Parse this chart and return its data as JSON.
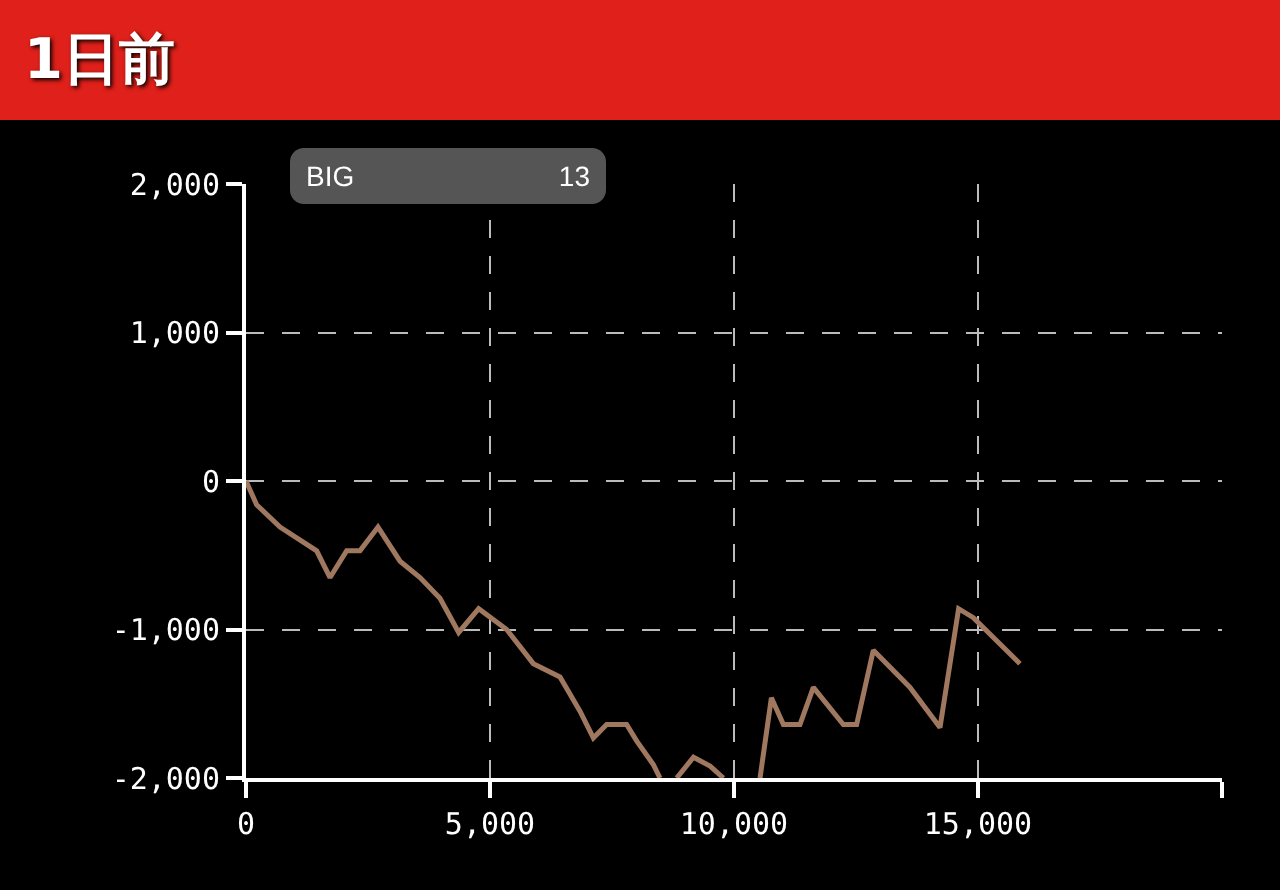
{
  "chart_data": {
    "type": "line",
    "title": "1日前",
    "annotations": [
      "BIG",
      "13"
    ],
    "x": [
      0,
      218,
      697,
      1448,
      1722,
      2063,
      2336,
      2705,
      3156,
      3566,
      3975,
      4358,
      4768,
      5342,
      5888,
      6434,
      6844,
      7118,
      7390,
      7800,
      8005,
      8347,
      8484,
      8650,
      8826,
      9170,
      9510,
      9783,
      10150,
      10533,
      10766,
      11012,
      11352,
      11626,
      12240,
      12513,
      12855,
      13607,
      14221,
      14603,
      14904,
      15860
    ],
    "series": [
      {
        "color": "#a07860",
        "values": [
          0,
          -160,
          -310,
          -470,
          -650,
          -470,
          -470,
          -310,
          -540,
          -650,
          -790,
          -1020,
          -860,
          -1000,
          -1230,
          -1320,
          -1550,
          -1730,
          -1640,
          -1640,
          -1750,
          -1910,
          -2000,
          null,
          -2000,
          -1860,
          -1920,
          -2000,
          null,
          -2000,
          -1460,
          -1640,
          -1640,
          -1390,
          -1640,
          -1640,
          -1140,
          -1390,
          -1660,
          -860,
          -920,
          -1230
        ]
      }
    ],
    "xlim": [
      0,
      20000
    ],
    "xticks": [
      0,
      {
        "value": 5000,
        "label": "5,000"
      },
      {
        "value": 10000,
        "label": "10,000"
      },
      {
        "value": 15000,
        "label": "15,000"
      },
      {
        "value": 20000,
        "label": null
      }
    ],
    "ylim": [
      -2000,
      2000
    ],
    "yticks": [
      {
        "value": -2000,
        "label": "-2,000"
      },
      {
        "value": -1000,
        "label": "-1,000"
      },
      0,
      {
        "value": 1000,
        "label": "1,000"
      },
      {
        "value": 2000,
        "label": "2,000"
      }
    ],
    "grid": true,
    "marker": "none",
    "line_style": "solid"
  }
}
